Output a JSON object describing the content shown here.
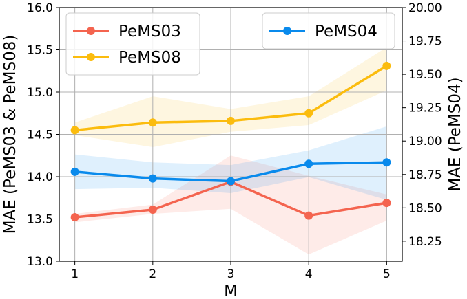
{
  "chart_data": {
    "type": "line",
    "x": [
      1,
      2,
      3,
      4,
      5
    ],
    "xlabel": "M",
    "ylabel_left": "MAE (PeMS03 & PeMS08)",
    "ylabel_right": "MAE (PeMS04)",
    "ylim_left": [
      13.0,
      16.0
    ],
    "ylim_right": [
      18.1,
      20.0
    ],
    "left_ticks": [
      "13.0",
      "13.5",
      "14.0",
      "14.5",
      "15.0",
      "15.5",
      "16.0"
    ],
    "right_ticks": [
      "18.25",
      "18.50",
      "18.75",
      "19.00",
      "19.25",
      "19.50",
      "19.75",
      "20.00"
    ],
    "x_ticks": [
      "1",
      "2",
      "3",
      "4",
      "5"
    ],
    "grid": true,
    "series": [
      {
        "name": "PeMS03",
        "axis": "left",
        "color": "#f4644f",
        "values": [
          13.52,
          13.61,
          13.94,
          13.54,
          13.69
        ],
        "band_low": [
          13.46,
          13.56,
          13.62,
          13.08,
          13.48
        ],
        "band_high": [
          13.56,
          13.67,
          14.25,
          14.01,
          13.79
        ]
      },
      {
        "name": "PeMS08",
        "axis": "left",
        "color": "#fbbc0e",
        "values": [
          14.55,
          14.64,
          14.66,
          14.75,
          15.31
        ],
        "band_low": [
          14.49,
          14.35,
          14.53,
          14.61,
          15.02
        ],
        "band_high": [
          14.64,
          14.95,
          14.8,
          14.95,
          15.53
        ]
      },
      {
        "name": "PeMS04",
        "axis": "right",
        "color": "#098aec",
        "values": [
          18.77,
          18.72,
          18.7,
          18.83,
          18.84
        ],
        "band_low": [
          18.64,
          18.65,
          18.61,
          18.73,
          18.56
        ],
        "band_high": [
          18.9,
          18.84,
          18.82,
          18.93,
          19.11
        ]
      }
    ],
    "legend_left": [
      "PeMS03",
      "PeMS08"
    ],
    "legend_right": [
      "PeMS04"
    ],
    "legend_left_placement": "top-left",
    "legend_right_placement": "top-right"
  }
}
